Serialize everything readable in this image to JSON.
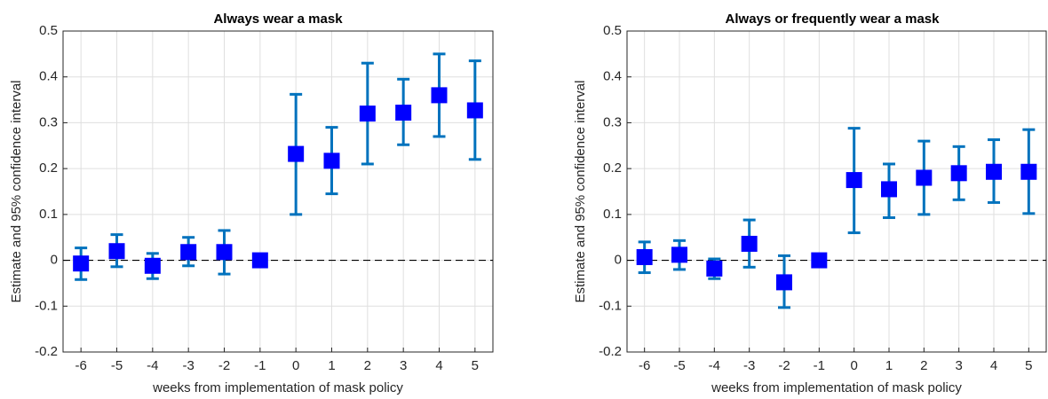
{
  "chart_data": [
    {
      "type": "errorbar",
      "title": "Always wear a mask",
      "xlabel": "weeks from implementation of mask policy",
      "ylabel": "Estimate and 95% confidence interval",
      "x": [
        -6,
        -5,
        -4,
        -3,
        -2,
        -1,
        0,
        1,
        2,
        3,
        4,
        5
      ],
      "series": [
        {
          "marker_color": "#0000ff",
          "color": "#0072bd",
          "values": [
            -0.007,
            0.02,
            -0.012,
            0.018,
            0.018,
            0,
            0.232,
            0.217,
            0.32,
            0.322,
            0.36,
            0.327
          ],
          "lower": [
            -0.042,
            -0.014,
            -0.04,
            -0.012,
            -0.03,
            0,
            0.1,
            0.145,
            0.21,
            0.252,
            0.27,
            0.22
          ],
          "upper": [
            0.027,
            0.056,
            0.015,
            0.05,
            0.065,
            0,
            0.362,
            0.29,
            0.43,
            0.395,
            0.45,
            0.435
          ]
        }
      ],
      "xlim": [
        -6.5,
        5.5
      ],
      "xticks": [
        -6,
        -5,
        -4,
        -3,
        -2,
        -1,
        0,
        1,
        2,
        3,
        4,
        5
      ],
      "ylim": [
        -0.2,
        0.5
      ],
      "yticks": [
        -0.2,
        -0.1,
        0,
        0.1,
        0.2,
        0.3,
        0.4,
        0.5
      ],
      "grid": true,
      "hline": 0
    },
    {
      "type": "errorbar",
      "title": "Always or frequently wear a mask",
      "xlabel": "weeks from implementation of mask policy",
      "ylabel": "Estimate and 95% confidence interval",
      "x": [
        -6,
        -5,
        -4,
        -3,
        -2,
        -1,
        0,
        1,
        2,
        3,
        4,
        5
      ],
      "series": [
        {
          "marker_color": "#0000ff",
          "color": "#0072bd",
          "values": [
            0.007,
            0.012,
            -0.018,
            0.036,
            -0.048,
            0,
            0.175,
            0.155,
            0.18,
            0.19,
            0.193,
            0.193
          ],
          "lower": [
            -0.027,
            -0.02,
            -0.04,
            -0.015,
            -0.103,
            0,
            0.06,
            0.093,
            0.1,
            0.132,
            0.126,
            0.102
          ],
          "upper": [
            0.04,
            0.043,
            0.003,
            0.088,
            0.01,
            0,
            0.288,
            0.21,
            0.26,
            0.248,
            0.263,
            0.285
          ]
        }
      ],
      "xlim": [
        -6.5,
        5.5
      ],
      "xticks": [
        -6,
        -5,
        -4,
        -3,
        -2,
        -1,
        0,
        1,
        2,
        3,
        4,
        5
      ],
      "ylim": [
        -0.2,
        0.5
      ],
      "yticks": [
        -0.2,
        -0.1,
        0,
        0.1,
        0.2,
        0.3,
        0.4,
        0.5
      ],
      "grid": true,
      "hline": 0
    }
  ]
}
